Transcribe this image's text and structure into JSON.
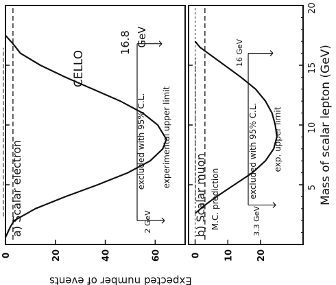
{
  "chart_data": {
    "type": "line",
    "xlabel": "Mass of scalar lepton (GeV)",
    "ylabel": "Expected number of events",
    "xlim": [
      0,
      20
    ],
    "x_ticks": [
      "5",
      "10",
      "15",
      "20"
    ],
    "grid": false,
    "orientation": "rotated-90-clockwise",
    "panels": [
      {
        "title": "a) Scalar electron",
        "experiment": "CELLO",
        "energy_label": "16.8",
        "energy_unit": "GeV",
        "ylim": [
          0,
          72
        ],
        "y_ticks": [
          {
            "value": 0,
            "label": "0"
          },
          {
            "value": 20,
            "label": "20"
          },
          {
            "value": 40,
            "label": "40"
          },
          {
            "value": 60,
            "label": "60"
          }
        ],
        "series": [
          {
            "x": [
              0.6,
              1.5,
              2,
              3,
              4,
              5,
              6,
              7,
              8,
              8.8,
              10,
              11,
              12,
              13,
              14,
              15,
              16,
              16.8,
              17.5
            ],
            "y": [
              0,
              2,
              3.5,
              12,
              24,
              37,
              49,
              58,
              63,
              64.5,
              61,
              55,
              46,
              35,
              24,
              14,
              6,
              3,
              0
            ]
          }
        ],
        "upper_limit": {
          "value": 3,
          "label": "experimental upper limit"
        },
        "excluded_label": "excluded with 95% C.L.",
        "excluded_range": [
          2,
          16.8
        ],
        "low_marker": "2 GeV"
      },
      {
        "title": "b) Scalar muon",
        "subtitle": "M.C. prediction",
        "ylim": [
          -2,
          33
        ],
        "y_ticks": [
          {
            "value": 0,
            "label": "0"
          },
          {
            "value": 10,
            "label": "10"
          },
          {
            "value": 20,
            "label": "20"
          }
        ],
        "series": [
          {
            "x": [
              2.6,
              3.3,
              4,
              5,
              6,
              7,
              8,
              9,
              10,
              11,
              12,
              13,
              14,
              15,
              16,
              16.5,
              17
            ],
            "y": [
              0,
              3,
              6.5,
              12,
              17.5,
              21.5,
              24,
              25,
              24.5,
              23.5,
              21.5,
              18.5,
              14,
              9,
              4,
              1.5,
              0
            ]
          }
        ],
        "upper_limit": {
          "value": 3,
          "label": "exp. upper limit"
        },
        "excluded_label": "excluded with 95% C.L.",
        "excluded_range": [
          3.3,
          16
        ],
        "low_marker": "3.3 GeV",
        "high_marker": "16 GeV"
      }
    ]
  }
}
